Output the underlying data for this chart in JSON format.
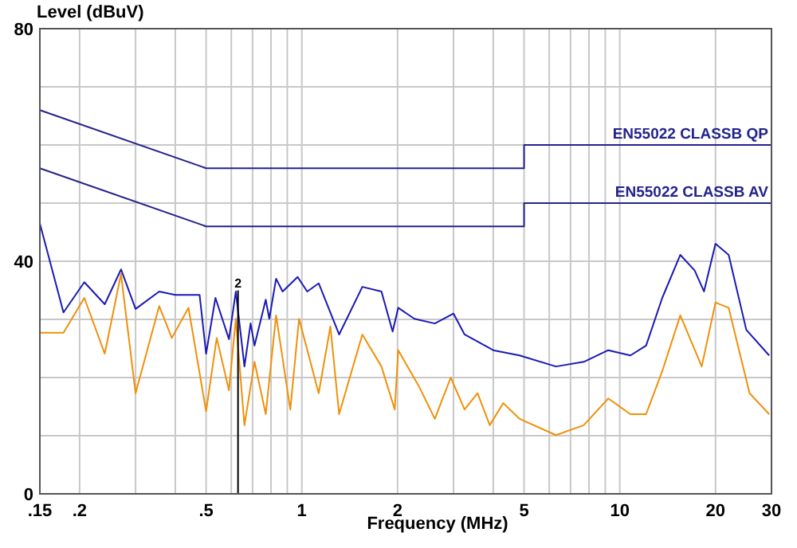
{
  "chart_data": {
    "type": "line",
    "ylabel": "Level (dBuV)",
    "xlabel": "Frequency (MHz)",
    "log": "x",
    "grid": true,
    "xlim": [
      0.15,
      30
    ],
    "ylim": [
      0,
      80
    ],
    "xticks": [
      {
        "value": 0.15,
        "label": ".15"
      },
      {
        "value": 0.2,
        "label": ".2"
      },
      {
        "value": 0.3,
        "label": null
      },
      {
        "value": 0.4,
        "label": null
      },
      {
        "value": 0.5,
        "label": ".5"
      },
      {
        "value": 0.6,
        "label": null
      },
      {
        "value": 0.7,
        "label": null
      },
      {
        "value": 0.8,
        "label": null
      },
      {
        "value": 0.9,
        "label": null
      },
      1,
      2,
      {
        "value": 3,
        "label": null
      },
      {
        "value": 4,
        "label": null
      },
      5,
      {
        "value": 6,
        "label": null
      },
      {
        "value": 7,
        "label": null
      },
      {
        "value": 8,
        "label": null
      },
      {
        "value": 9,
        "label": null
      },
      10,
      20,
      30
    ],
    "yticks": [
      0,
      {
        "value": 10,
        "label": null
      },
      {
        "value": 20,
        "label": null
      },
      {
        "value": 30,
        "label": null
      },
      40,
      {
        "value": 50,
        "label": null
      },
      {
        "value": 60,
        "label": null
      },
      {
        "value": 70,
        "label": null
      },
      80
    ],
    "series": [
      {
        "name": "EN55022 CLASSB QP",
        "color": "#23238c",
        "x": [
          0.15,
          0.5,
          5,
          5,
          30
        ],
        "values": [
          66,
          56,
          56,
          60,
          60
        ]
      },
      {
        "name": "EN55022 CLASSB AV",
        "color": "#23238c",
        "x": [
          0.15,
          0.5,
          5,
          5,
          30
        ],
        "values": [
          56,
          46,
          46,
          50,
          50
        ]
      },
      {
        "color": "#f0900a",
        "x": [
          0.15,
          0.178,
          0.207,
          0.24,
          0.27,
          0.3,
          0.356,
          0.39,
          0.44,
          0.5,
          0.54,
          0.59,
          0.62,
          0.66,
          0.71,
          0.77,
          0.83,
          0.92,
          0.98,
          1.13,
          1.23,
          1.31,
          1.55,
          1.78,
          1.96,
          2.01,
          2.34,
          2.62,
          2.94,
          3.25,
          3.57,
          3.9,
          4.3,
          4.84,
          6.3,
          7.7,
          9.2,
          10.8,
          12.1,
          13.6,
          15.5,
          18.1,
          20,
          22,
          25.6,
          29.5
        ],
        "values": [
          27.7,
          27.7,
          33.7,
          24.1,
          37.8,
          17.3,
          32.3,
          26.8,
          32,
          14.2,
          26.8,
          17.8,
          30.1,
          11.8,
          22.7,
          13.7,
          30.7,
          14.5,
          30.1,
          17.3,
          28.8,
          13.7,
          27.4,
          21.9,
          14.5,
          24.7,
          18.4,
          12.9,
          20,
          14.5,
          17.3,
          11.8,
          15.6,
          12.9,
          10.1,
          11.8,
          16.4,
          13.7,
          13.7,
          21.1,
          30.7,
          21.9,
          32.9,
          32,
          17.3,
          13.7
        ]
      },
      {
        "color": "#1a1ab4",
        "x": [
          0.15,
          0.178,
          0.207,
          0.24,
          0.27,
          0.3,
          0.356,
          0.4,
          0.477,
          0.5,
          0.535,
          0.59,
          0.62,
          0.66,
          0.69,
          0.71,
          0.77,
          0.79,
          0.83,
          0.87,
          0.97,
          1.04,
          1.13,
          1.31,
          1.55,
          1.78,
          1.93,
          2.01,
          2.26,
          2.62,
          3,
          3.25,
          4,
          4.84,
          6.3,
          7.7,
          9.2,
          10.8,
          12.1,
          13.6,
          15.5,
          17.2,
          18.4,
          20,
          22,
          25,
          29.5
        ],
        "values": [
          46.5,
          31.2,
          36.4,
          32.6,
          38.6,
          31.8,
          34.8,
          34.2,
          34.2,
          24.1,
          33.7,
          26.6,
          34.8,
          21.9,
          29.3,
          25.5,
          33.4,
          30.1,
          37,
          34.8,
          37.3,
          34.8,
          36.2,
          27.4,
          35.6,
          34.8,
          27.9,
          32,
          30.1,
          29.3,
          31,
          27.4,
          24.7,
          23.8,
          21.9,
          22.7,
          24.7,
          23.8,
          25.5,
          33.7,
          41.1,
          38.4,
          34.8,
          43,
          41.1,
          28.2,
          23.8
        ]
      }
    ],
    "annotations": [
      {
        "text": "2",
        "x": 0.63,
        "y": 35
      }
    ]
  }
}
